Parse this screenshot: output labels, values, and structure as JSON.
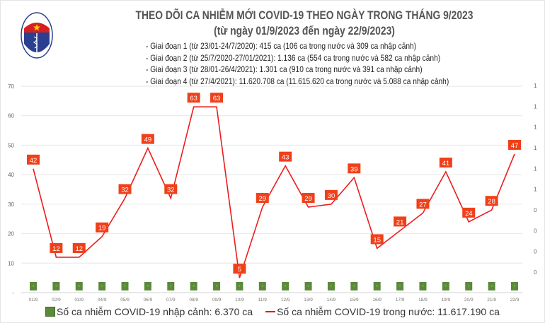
{
  "logo": {
    "text_top": "BỘ Y TẾ",
    "text_bottom": "MINISTRY OF HEALTH"
  },
  "header": {
    "title": "THEO DÕI CA NHIỄM MỚI COVID-19 THEO NGÀY TRONG THÁNG 9/2023",
    "subtitle": "(từ ngày 01/9/2023 đến ngày 22/9/2023)",
    "phases": [
      "- Giai đoạn 1 (từ 23/01-24/7/2020): 415 ca (106 ca trong nước và 309 ca nhập cảnh)",
      "- Giai đoạn 2 (từ 25/7/2020-27/01/2021): 1.136 ca (554 ca trong nước và 582 ca nhập cảnh)",
      "- Giai đoạn 3 (từ 28/01-26/4/2021): 1.301 ca (910 ca trong nước và 391 ca nhập cảnh)",
      "- Giai đoạn 4 (từ 27/4/2021): 11.620.708 ca (11.615.620 ca trong nước và 5.088 ca nhập cảnh)"
    ]
  },
  "chart_data": {
    "type": "bar+line",
    "categories": [
      "01/9",
      "02/9",
      "03/9",
      "04/9",
      "05/9",
      "06/9",
      "07/9",
      "08/9",
      "09/9",
      "10/9",
      "11/9",
      "12/9",
      "13/9",
      "14/9",
      "15/9",
      "16/9",
      "17/9",
      "18/9",
      "19/9",
      "20/9",
      "21/9",
      "22/9"
    ],
    "series": [
      {
        "name": "Số ca nhiễm COVID-19 nhập cảnh: 6.370 ca",
        "type": "bar",
        "axis": "right",
        "color": "#5a8a3a",
        "values": [
          0,
          0,
          0,
          0,
          0,
          0,
          0,
          0,
          0,
          0,
          0,
          0,
          0,
          0,
          0,
          0,
          0,
          0,
          0,
          0,
          0,
          0
        ],
        "labels": [
          "-",
          "-",
          "-",
          "-",
          "-",
          "-",
          "-",
          "-",
          "-",
          "-",
          "-",
          "-",
          "-",
          "-",
          "-",
          "-",
          "-",
          "-",
          "-",
          "-",
          "-",
          "-"
        ]
      },
      {
        "name": "Số ca nhiễm COVID-19 trong nước: 11.617.190 ca",
        "type": "line",
        "axis": "left",
        "color": "#ee1c1c",
        "label_color": "#f0401a",
        "values": [
          42,
          12,
          12,
          19,
          32,
          49,
          32,
          63,
          63,
          5,
          29,
          43,
          29,
          30,
          39,
          15,
          21,
          27,
          41,
          24,
          28,
          47
        ]
      }
    ],
    "y_left": {
      "ylim": [
        0,
        70
      ],
      "ticks": [
        "-",
        "10",
        "20",
        "30",
        "40",
        "50",
        "60",
        "70"
      ]
    },
    "y_right": {
      "ticks": [
        "0",
        "0",
        "0",
        "0",
        "1",
        "1",
        "1",
        "1",
        "1",
        "1"
      ]
    },
    "grid": true,
    "legend_placement": "bottom"
  }
}
